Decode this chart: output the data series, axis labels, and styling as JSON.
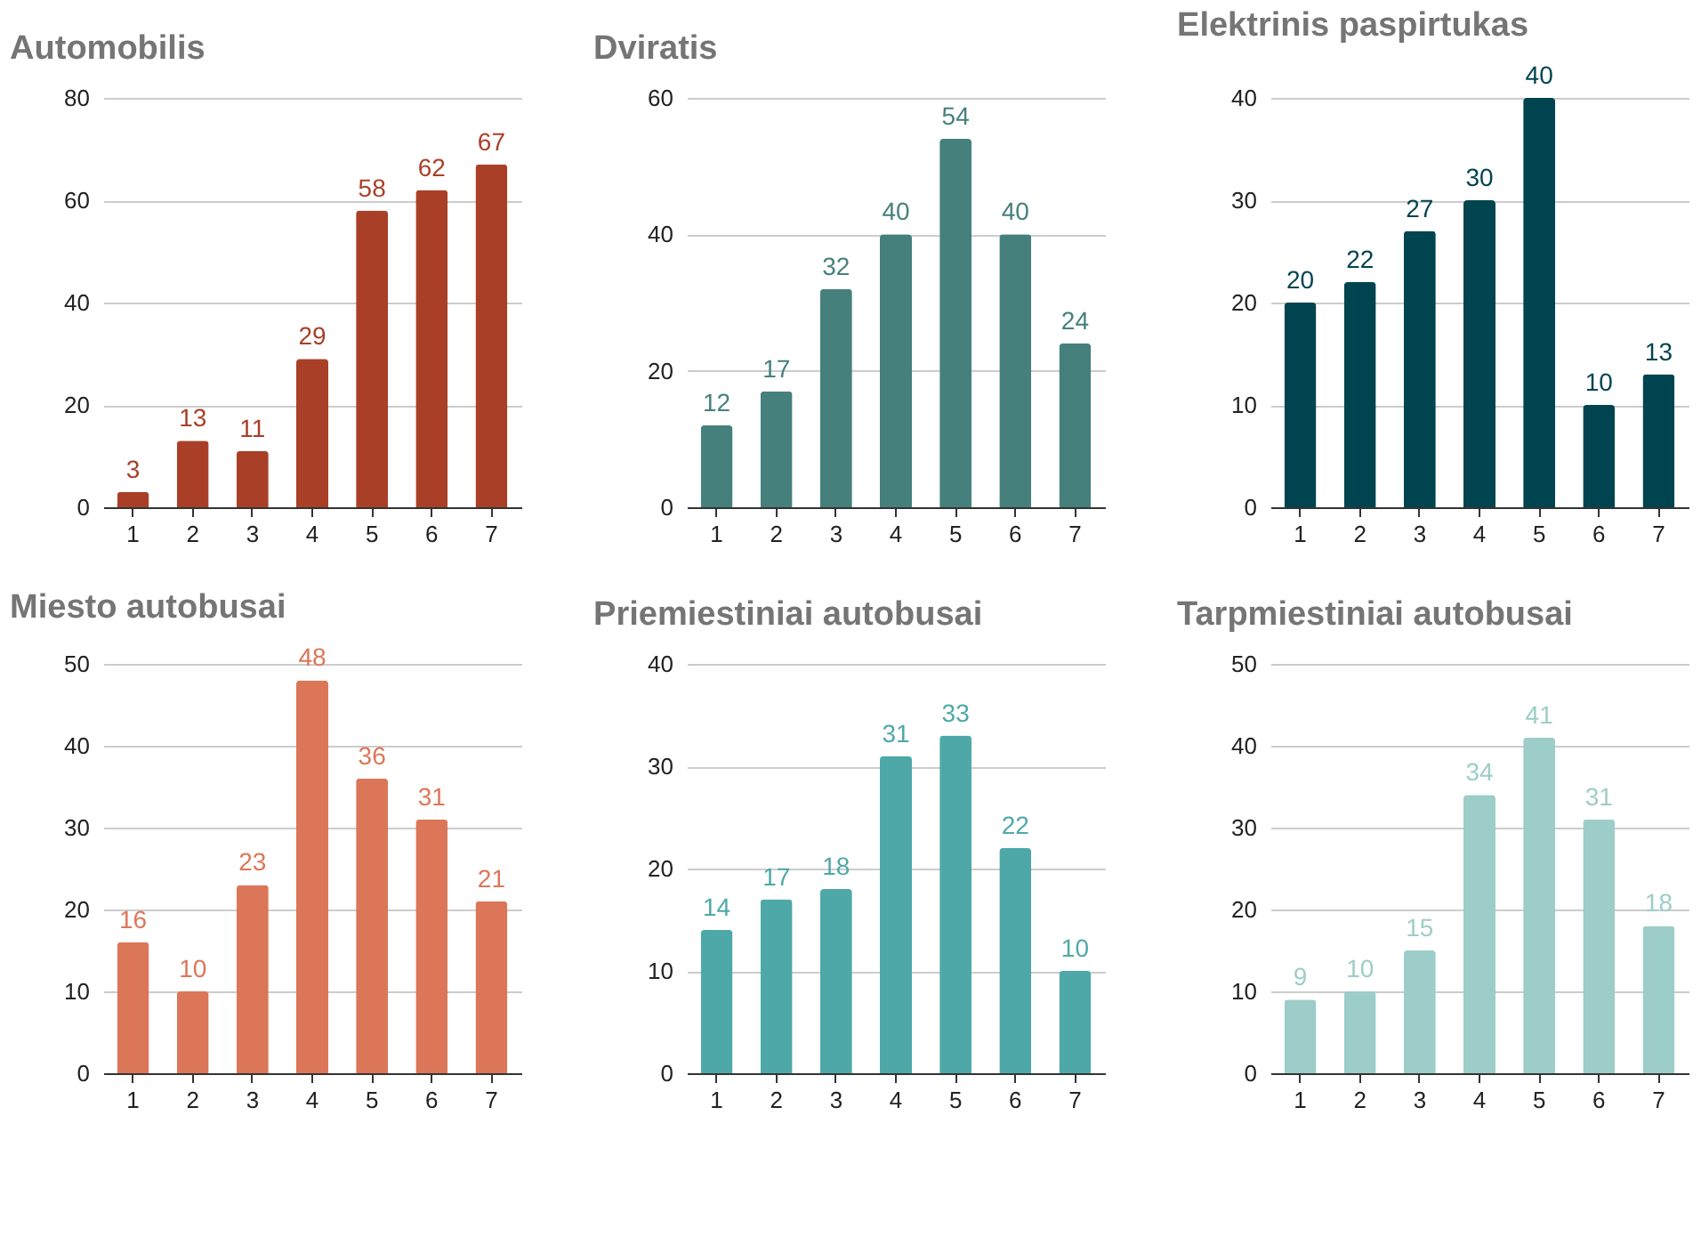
{
  "chart_data": [
    {
      "type": "bar",
      "title": "Automobilis",
      "categories": [
        "1",
        "2",
        "3",
        "4",
        "5",
        "6",
        "7"
      ],
      "values": [
        3,
        13,
        11,
        29,
        58,
        62,
        67
      ],
      "color": "#a93f27",
      "ylim": [
        0,
        80
      ],
      "yticks": [
        0,
        20,
        40,
        60,
        80
      ],
      "grid": "y",
      "data_labels": true
    },
    {
      "type": "bar",
      "title": "Dviratis",
      "categories": [
        "1",
        "2",
        "3",
        "4",
        "5",
        "6",
        "7"
      ],
      "values": [
        12,
        17,
        32,
        40,
        54,
        40,
        24
      ],
      "color": "#45807c",
      "ylim": [
        0,
        60
      ],
      "yticks": [
        0,
        20,
        40,
        60
      ],
      "grid": "y",
      "data_labels": true
    },
    {
      "type": "bar",
      "title": "Elektrinis paspirtukas",
      "categories": [
        "1",
        "2",
        "3",
        "4",
        "5",
        "6",
        "7"
      ],
      "values": [
        20,
        22,
        27,
        30,
        40,
        10,
        13
      ],
      "color": "#00444f",
      "ylim": [
        0,
        40
      ],
      "yticks": [
        0,
        10,
        20,
        30,
        40
      ],
      "grid": "y",
      "data_labels": true
    },
    {
      "type": "bar",
      "title": "Miesto autobusai",
      "categories": [
        "1",
        "2",
        "3",
        "4",
        "5",
        "6",
        "7"
      ],
      "values": [
        16,
        10,
        23,
        48,
        36,
        31,
        21
      ],
      "color": "#dc7658",
      "ylim": [
        0,
        50
      ],
      "yticks": [
        0,
        10,
        20,
        30,
        40,
        50
      ],
      "grid": "y",
      "data_labels": true
    },
    {
      "type": "bar",
      "title": "Priemiestiniai autobusai",
      "categories": [
        "1",
        "2",
        "3",
        "4",
        "5",
        "6",
        "7"
      ],
      "values": [
        14,
        17,
        18,
        31,
        33,
        22,
        10
      ],
      "color": "#4fa8a8",
      "ylim": [
        0,
        40
      ],
      "yticks": [
        0,
        10,
        20,
        30,
        40
      ],
      "grid": "y",
      "data_labels": true
    },
    {
      "type": "bar",
      "title": "Tarpmiestiniai autobusai",
      "categories": [
        "1",
        "2",
        "3",
        "4",
        "5",
        "6",
        "7"
      ],
      "values": [
        9,
        10,
        15,
        34,
        41,
        31,
        18
      ],
      "color": "#9dcdc8",
      "ylim": [
        0,
        50
      ],
      "yticks": [
        0,
        10,
        20,
        30,
        40,
        50
      ],
      "grid": "y",
      "data_labels": true
    }
  ]
}
